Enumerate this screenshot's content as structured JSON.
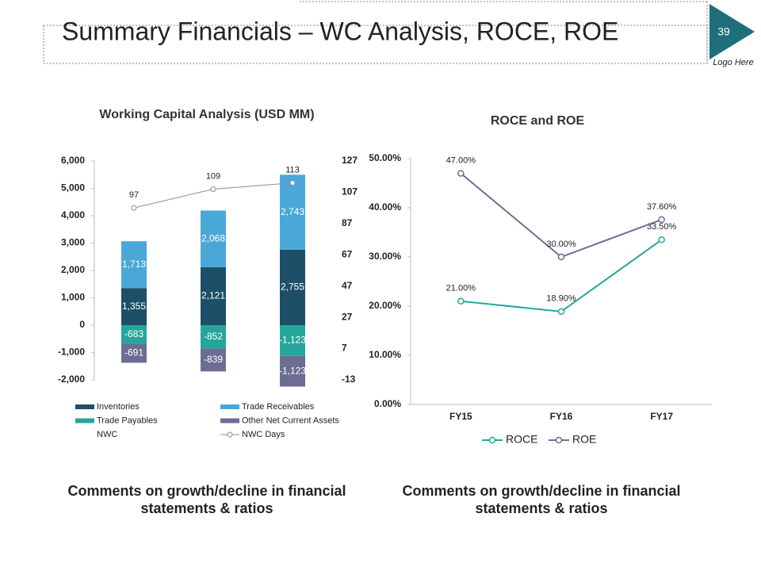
{
  "header": {
    "title": "Summary Financials – WC Analysis, ROCE, ROE",
    "page_number": "39",
    "logo": "Logo Here"
  },
  "chart_data": [
    {
      "type": "bar",
      "title": "Working Capital Analysis (USD MM)",
      "categories": [
        null,
        null,
        null
      ],
      "series": [
        {
          "name": "Inventories",
          "color": "#1d4f68",
          "values": [
            1355,
            2121,
            2755
          ],
          "value_labels": [
            "1,355",
            "2,121",
            "2,755"
          ]
        },
        {
          "name": "Trade Receivables",
          "color": "#4aa8d8",
          "values": [
            1713,
            2068,
            2743
          ],
          "value_labels": [
            "1,713",
            "2,068",
            "2,743"
          ]
        },
        {
          "name": "Trade Payables",
          "color": "#26a69a",
          "values": [
            -683,
            -852,
            -1123
          ],
          "value_labels": [
            "-683",
            "-852",
            "-1,123"
          ]
        },
        {
          "name": "Other Net Current Assets",
          "color": "#6c6d93",
          "values": [
            -691,
            -839,
            -1123
          ],
          "value_labels": [
            "-691",
            "-839",
            "-1,123"
          ]
        },
        {
          "name": "NWC Days",
          "type": "line",
          "axis": "y2",
          "color": "#8a8aa8",
          "values": [
            97,
            109,
            113
          ]
        }
      ],
      "extra_legend": [
        "NWC"
      ],
      "ylim": [
        -2000,
        6000
      ],
      "yticks": [
        {
          "value": -2000,
          "label": "-2,000"
        },
        {
          "value": -1000,
          "label": "-1,000"
        },
        0,
        {
          "value": 1000,
          "label": "1,000"
        },
        {
          "value": 2000,
          "label": "2,000"
        },
        {
          "value": 3000,
          "label": "3,000"
        },
        {
          "value": 4000,
          "label": "4,000"
        },
        {
          "value": 5000,
          "label": "5,000"
        },
        {
          "value": 6000,
          "label": "6,000"
        }
      ],
      "y2lim": [
        -13,
        127
      ],
      "y2ticks": [
        -13,
        7,
        27,
        47,
        67,
        87,
        107,
        127
      ],
      "grid": false
    },
    {
      "type": "line",
      "title": "ROCE and ROE",
      "categories": [
        "FY15",
        "FY16",
        "FY17"
      ],
      "series": [
        {
          "name": "ROCE",
          "color": "#26a69a",
          "values": [
            21,
            18.9,
            33.5
          ],
          "value_labels": [
            "21.00%",
            "18.90%",
            "33.50%"
          ]
        },
        {
          "name": "ROE",
          "color": "#6c6d93",
          "values": [
            47,
            30,
            37.6
          ],
          "value_labels": [
            "47.00%",
            "30.00%",
            "37.60%"
          ]
        }
      ],
      "ylim": [
        0,
        50
      ],
      "yticks": [
        {
          "value": 0,
          "label": "0.00%"
        },
        {
          "value": 10,
          "label": "10.00%"
        },
        {
          "value": 20,
          "label": "20.00%"
        },
        {
          "value": 30,
          "label": "30.00%"
        },
        {
          "value": 40,
          "label": "40.00%"
        },
        {
          "value": 50,
          "label": "50.00%"
        }
      ],
      "grid": false,
      "legend": "bottom"
    }
  ],
  "comments": [
    {
      "lines": [
        "Comments on growth/decline in financial",
        "statements & ratios"
      ]
    },
    {
      "lines": [
        "Comments on growth/decline in financial",
        "statements & ratios"
      ]
    }
  ]
}
